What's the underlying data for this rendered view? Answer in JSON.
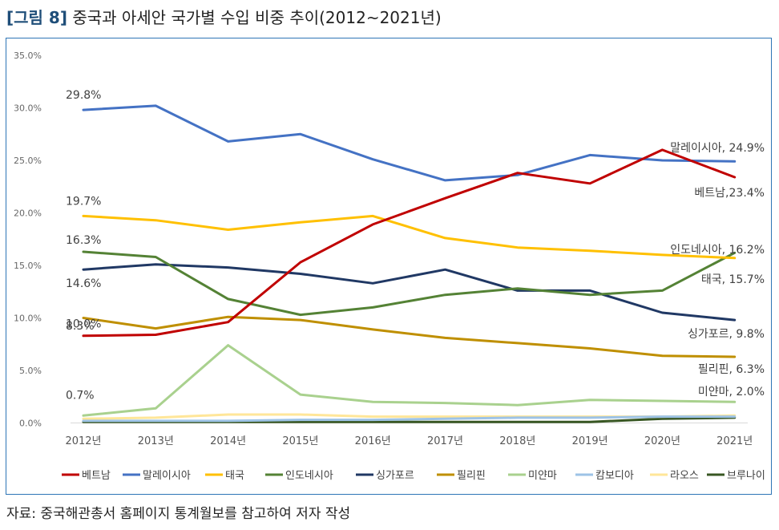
{
  "header": {
    "tag": "[그림 8]",
    "title": "중국과 아세안 국가별 수입 비중 추이(2012~2021년)"
  },
  "source": "자료: 중국해관총서 홈페이지 통계월보를 참고하여 저자 작성",
  "chart_data": {
    "type": "line",
    "title": "",
    "xlabel": "",
    "ylabel": "",
    "ylim": [
      0,
      35
    ],
    "grid": false,
    "legend_position": "bottom",
    "categories": [
      "2012년",
      "2013년",
      "2014년",
      "2015년",
      "2016년",
      "2017년",
      "2018년",
      "2019년",
      "2020년",
      "2021년"
    ],
    "y_ticks": [
      "0.0%",
      "5.0%",
      "10.0%",
      "15.0%",
      "20.0%",
      "25.0%",
      "30.0%",
      "35.0%"
    ],
    "series": [
      {
        "name": "베트남",
        "color": "#c00000",
        "values": [
          8.3,
          8.4,
          9.6,
          15.3,
          18.9,
          21.4,
          23.8,
          22.8,
          26.0,
          23.4
        ]
      },
      {
        "name": "말레이시아",
        "color": "#4472c4",
        "values": [
          29.8,
          30.2,
          26.8,
          27.5,
          25.1,
          23.1,
          23.6,
          25.5,
          25.0,
          24.9
        ]
      },
      {
        "name": "태국",
        "color": "#ffc000",
        "values": [
          19.7,
          19.3,
          18.4,
          19.1,
          19.7,
          17.6,
          16.7,
          16.4,
          16.0,
          15.7
        ]
      },
      {
        "name": "인도네시아",
        "color": "#548235",
        "values": [
          16.3,
          15.8,
          11.8,
          10.3,
          11.0,
          12.2,
          12.8,
          12.2,
          12.6,
          16.2
        ]
      },
      {
        "name": "싱가포르",
        "color": "#203864",
        "values": [
          14.6,
          15.1,
          14.8,
          14.2,
          13.3,
          14.6,
          12.6,
          12.6,
          10.5,
          9.8
        ]
      },
      {
        "name": "필리핀",
        "color": "#bf8f00",
        "values": [
          10.0,
          9.0,
          10.1,
          9.8,
          8.9,
          8.1,
          7.6,
          7.1,
          6.4,
          6.3
        ]
      },
      {
        "name": "미얀마",
        "color": "#a9d18e",
        "values": [
          0.7,
          1.4,
          7.4,
          2.7,
          2.0,
          1.9,
          1.7,
          2.2,
          2.1,
          2.0
        ]
      },
      {
        "name": "캄보디아",
        "color": "#9dc3e6",
        "values": [
          0.2,
          0.2,
          0.2,
          0.3,
          0.3,
          0.4,
          0.5,
          0.5,
          0.6,
          0.6
        ]
      },
      {
        "name": "라오스",
        "color": "#ffe699",
        "values": [
          0.4,
          0.5,
          0.8,
          0.8,
          0.6,
          0.6,
          0.6,
          0.6,
          0.6,
          0.7
        ]
      },
      {
        "name": "브루나이",
        "color": "#385723",
        "values": [
          0.1,
          0.1,
          0.1,
          0.1,
          0.1,
          0.1,
          0.1,
          0.1,
          0.4,
          0.5
        ]
      }
    ],
    "annotations": {
      "start": [
        {
          "series": "말레이시아",
          "text": "29.8%"
        },
        {
          "series": "태국",
          "text": "19.7%"
        },
        {
          "series": "인도네시아",
          "text": "16.3%"
        },
        {
          "series": "싱가포르",
          "text": "14.6%"
        },
        {
          "series": "필리핀",
          "text": "10.0%"
        },
        {
          "series": "베트남",
          "text": "8.3%"
        },
        {
          "series": "미얀마",
          "text": "0.7%"
        }
      ],
      "end": [
        {
          "series": "말레이시아",
          "text": "말레이시아, 24.9%"
        },
        {
          "series": "베트남",
          "text": "베트남,23.4%"
        },
        {
          "series": "인도네시아",
          "text": "인도네시아, 16.2%"
        },
        {
          "series": "태국",
          "text": "태국, 15.7%"
        },
        {
          "series": "싱가포르",
          "text": "싱가포르, 9.8%"
        },
        {
          "series": "필리핀",
          "text": "필리핀, 6.3%"
        },
        {
          "series": "미얀마",
          "text": "미얀마, 2.0%"
        }
      ]
    }
  }
}
